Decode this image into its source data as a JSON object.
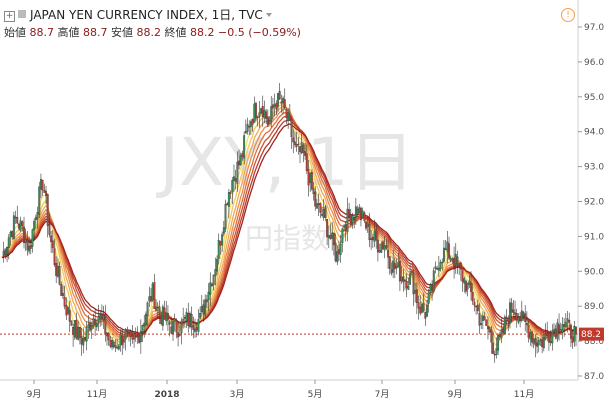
{
  "header": {
    "symbol": "JAPAN YEN CURRENCY INDEX, 1日, TVC",
    "ohlc": {
      "open_label": "始値",
      "open": "88.7",
      "high_label": "高値",
      "high": "88.7",
      "low_label": "安値",
      "low": "88.2",
      "close_label": "終値",
      "close": "88.2",
      "change": "−0.5 (−0.59%)"
    }
  },
  "watermark": {
    "symbol": "JXY, 1日",
    "name": "円指数"
  },
  "last_price_label": "88.2",
  "colors": {
    "up": "#3d8b5a",
    "down": "#b3433b",
    "last_line": "#c0392b",
    "ribbon_light": "#f5e26b",
    "ribbon_dark": "#a2251f"
  },
  "chart_data": {
    "type": "candlestick",
    "x_ticks": [
      "9月",
      "11月",
      "2018",
      "3月",
      "5月",
      "7月",
      "9月",
      "11月"
    ],
    "y_ticks": [
      "87.0",
      "88.0",
      "89.0",
      "90.0",
      "91.0",
      "92.0",
      "93.0",
      "94.0",
      "95.0",
      "96.0",
      "97.0"
    ],
    "ylim": [
      86.6,
      97.5
    ],
    "last_price": 88.2,
    "overlay": "EMA ribbon (8 lines)",
    "close_series": [
      90.4,
      91.0,
      91.5,
      91.2,
      90.6,
      91.8,
      92.6,
      91.0,
      90.0,
      89.2,
      88.6,
      88.2,
      88.0,
      88.6,
      88.8,
      88.4,
      87.8,
      88.0,
      88.2,
      87.8,
      88.2,
      88.8,
      89.4,
      88.8,
      88.6,
      88.4,
      88.4,
      88.6,
      88.6,
      88.6,
      89.4,
      90.0,
      91.0,
      92.2,
      92.8,
      93.2,
      94.2,
      94.6,
      94.8,
      94.2,
      94.9,
      94.8,
      94.2,
      93.4,
      93.4,
      92.6,
      91.8,
      91.6,
      91.0,
      90.4,
      91.4,
      91.6,
      91.8,
      91.4,
      91.0,
      90.8,
      90.8,
      90.2,
      90.0,
      89.8,
      89.8,
      89.0,
      88.8,
      89.6,
      90.4,
      90.6,
      90.4,
      90.0,
      89.6,
      89.2,
      88.6,
      88.4,
      87.8,
      88.0,
      88.8,
      89.0,
      88.6,
      88.4,
      88.0,
      88.0,
      88.2,
      88.4,
      88.6,
      88.3,
      88.2
    ]
  }
}
